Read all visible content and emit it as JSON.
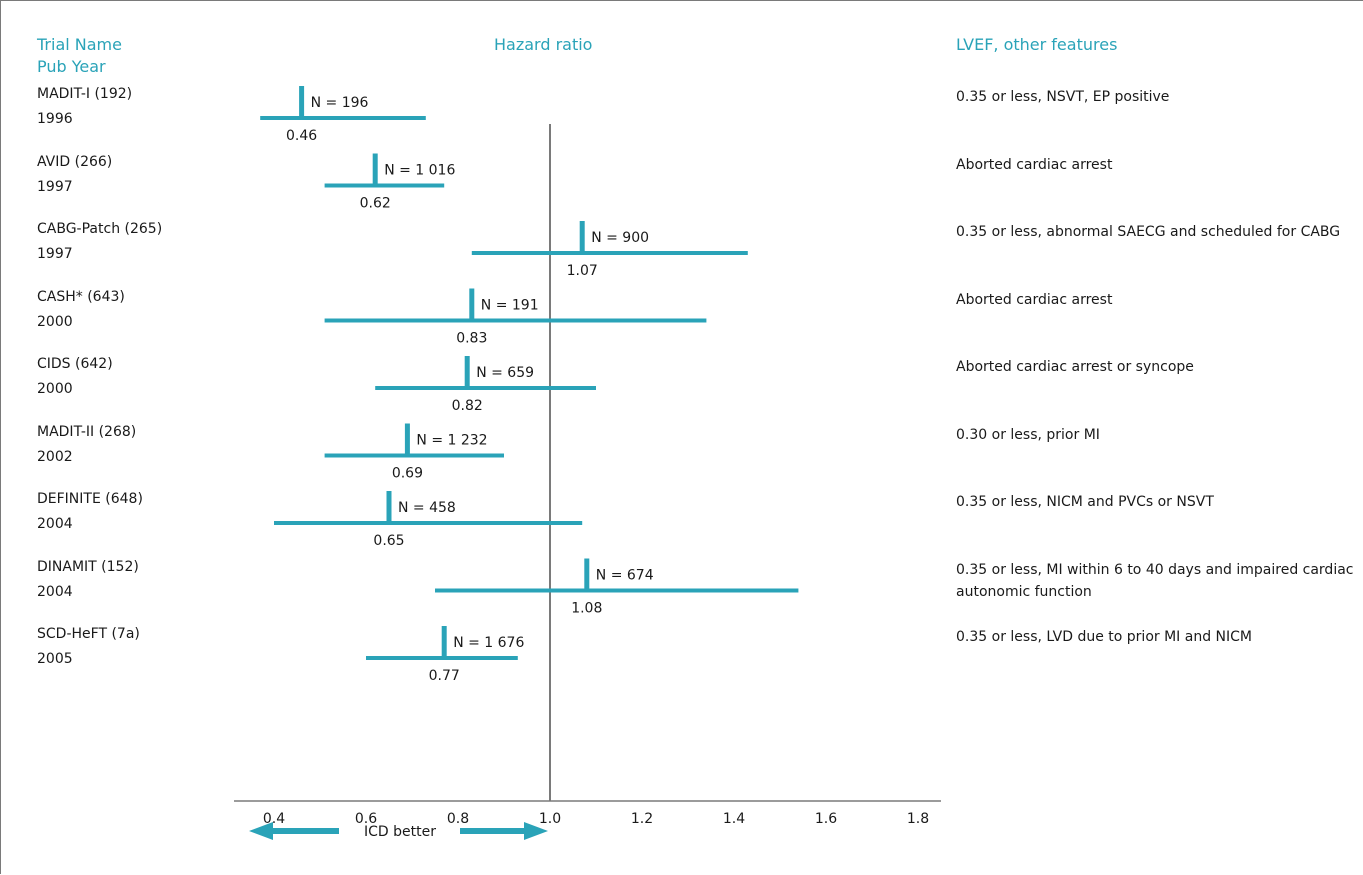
{
  "headers": {
    "trial_line1": "Trial Name",
    "trial_line2": "Pub Year",
    "hazard": "Hazard ratio",
    "lvef": "LVEF, other features"
  },
  "colors": {
    "accent": "#2aa3b8",
    "axis": "#7a7a7a",
    "text": "#1a1a1a"
  },
  "chart_data": {
    "type": "forest",
    "xlabel": "ICD better",
    "xlim": [
      0.4,
      1.8
    ],
    "xticks": [
      0.4,
      0.6,
      0.8,
      1.0,
      1.2,
      1.4,
      1.6,
      1.8
    ],
    "xtick_labels": [
      "0.4",
      "0.6",
      "0.8",
      "1.0",
      "1.2",
      "1.4",
      "1.6",
      "1.8"
    ],
    "reference_line": 1.0,
    "trials": [
      {
        "name": "MADIT-I (192)",
        "year": "1996",
        "hr": 0.46,
        "hr_label": "0.46",
        "ci": [
          0.37,
          0.73
        ],
        "n": "N = 196",
        "features": "0.35 or less, NSVT, EP positive"
      },
      {
        "name": "AVID (266)",
        "year": "1997",
        "hr": 0.62,
        "hr_label": "0.62",
        "ci": [
          0.51,
          0.77
        ],
        "n": "N = 1 016",
        "features": "Aborted cardiac arrest"
      },
      {
        "name": "CABG-Patch (265)",
        "year": "1997",
        "hr": 1.07,
        "hr_label": "1.07",
        "ci": [
          0.83,
          1.43
        ],
        "n": "N = 900",
        "features": "0.35 or less, abnormal SAECG and scheduled for CABG"
      },
      {
        "name": "CASH* (643)",
        "year": "2000",
        "hr": 0.83,
        "hr_label": "0.83",
        "ci": [
          0.51,
          1.34
        ],
        "n": "N = 191",
        "features": "Aborted cardiac arrest"
      },
      {
        "name": "CIDS (642)",
        "year": "2000",
        "hr": 0.82,
        "hr_label": "0.82",
        "ci": [
          0.62,
          1.1
        ],
        "n": "N = 659",
        "features": "Aborted cardiac arrest or syncope"
      },
      {
        "name": "MADIT-II (268)",
        "year": "2002",
        "hr": 0.69,
        "hr_label": "0.69",
        "ci": [
          0.51,
          0.9
        ],
        "n": "N = 1 232",
        "features": "0.30 or less, prior MI"
      },
      {
        "name": "DEFINITE (648)",
        "year": "2004",
        "hr": 0.65,
        "hr_label": "0.65",
        "ci": [
          0.4,
          1.07
        ],
        "n": "N = 458",
        "features": "0.35 or less, NICM and PVCs or NSVT"
      },
      {
        "name": "DINAMIT (152)",
        "year": "2004",
        "hr": 1.08,
        "hr_label": "1.08",
        "ci": [
          0.75,
          1.54
        ],
        "n": "N = 674",
        "features": "0.35 or less, MI within 6 to 40 days and impaired cardiac autonomic function"
      },
      {
        "name": "SCD-HeFT (7a)",
        "year": "2005",
        "hr": 0.77,
        "hr_label": "0.77",
        "ci": [
          0.6,
          0.93
        ],
        "n": "N = 1 676",
        "features": "0.35 or less, LVD due to prior MI and NICM"
      }
    ]
  }
}
